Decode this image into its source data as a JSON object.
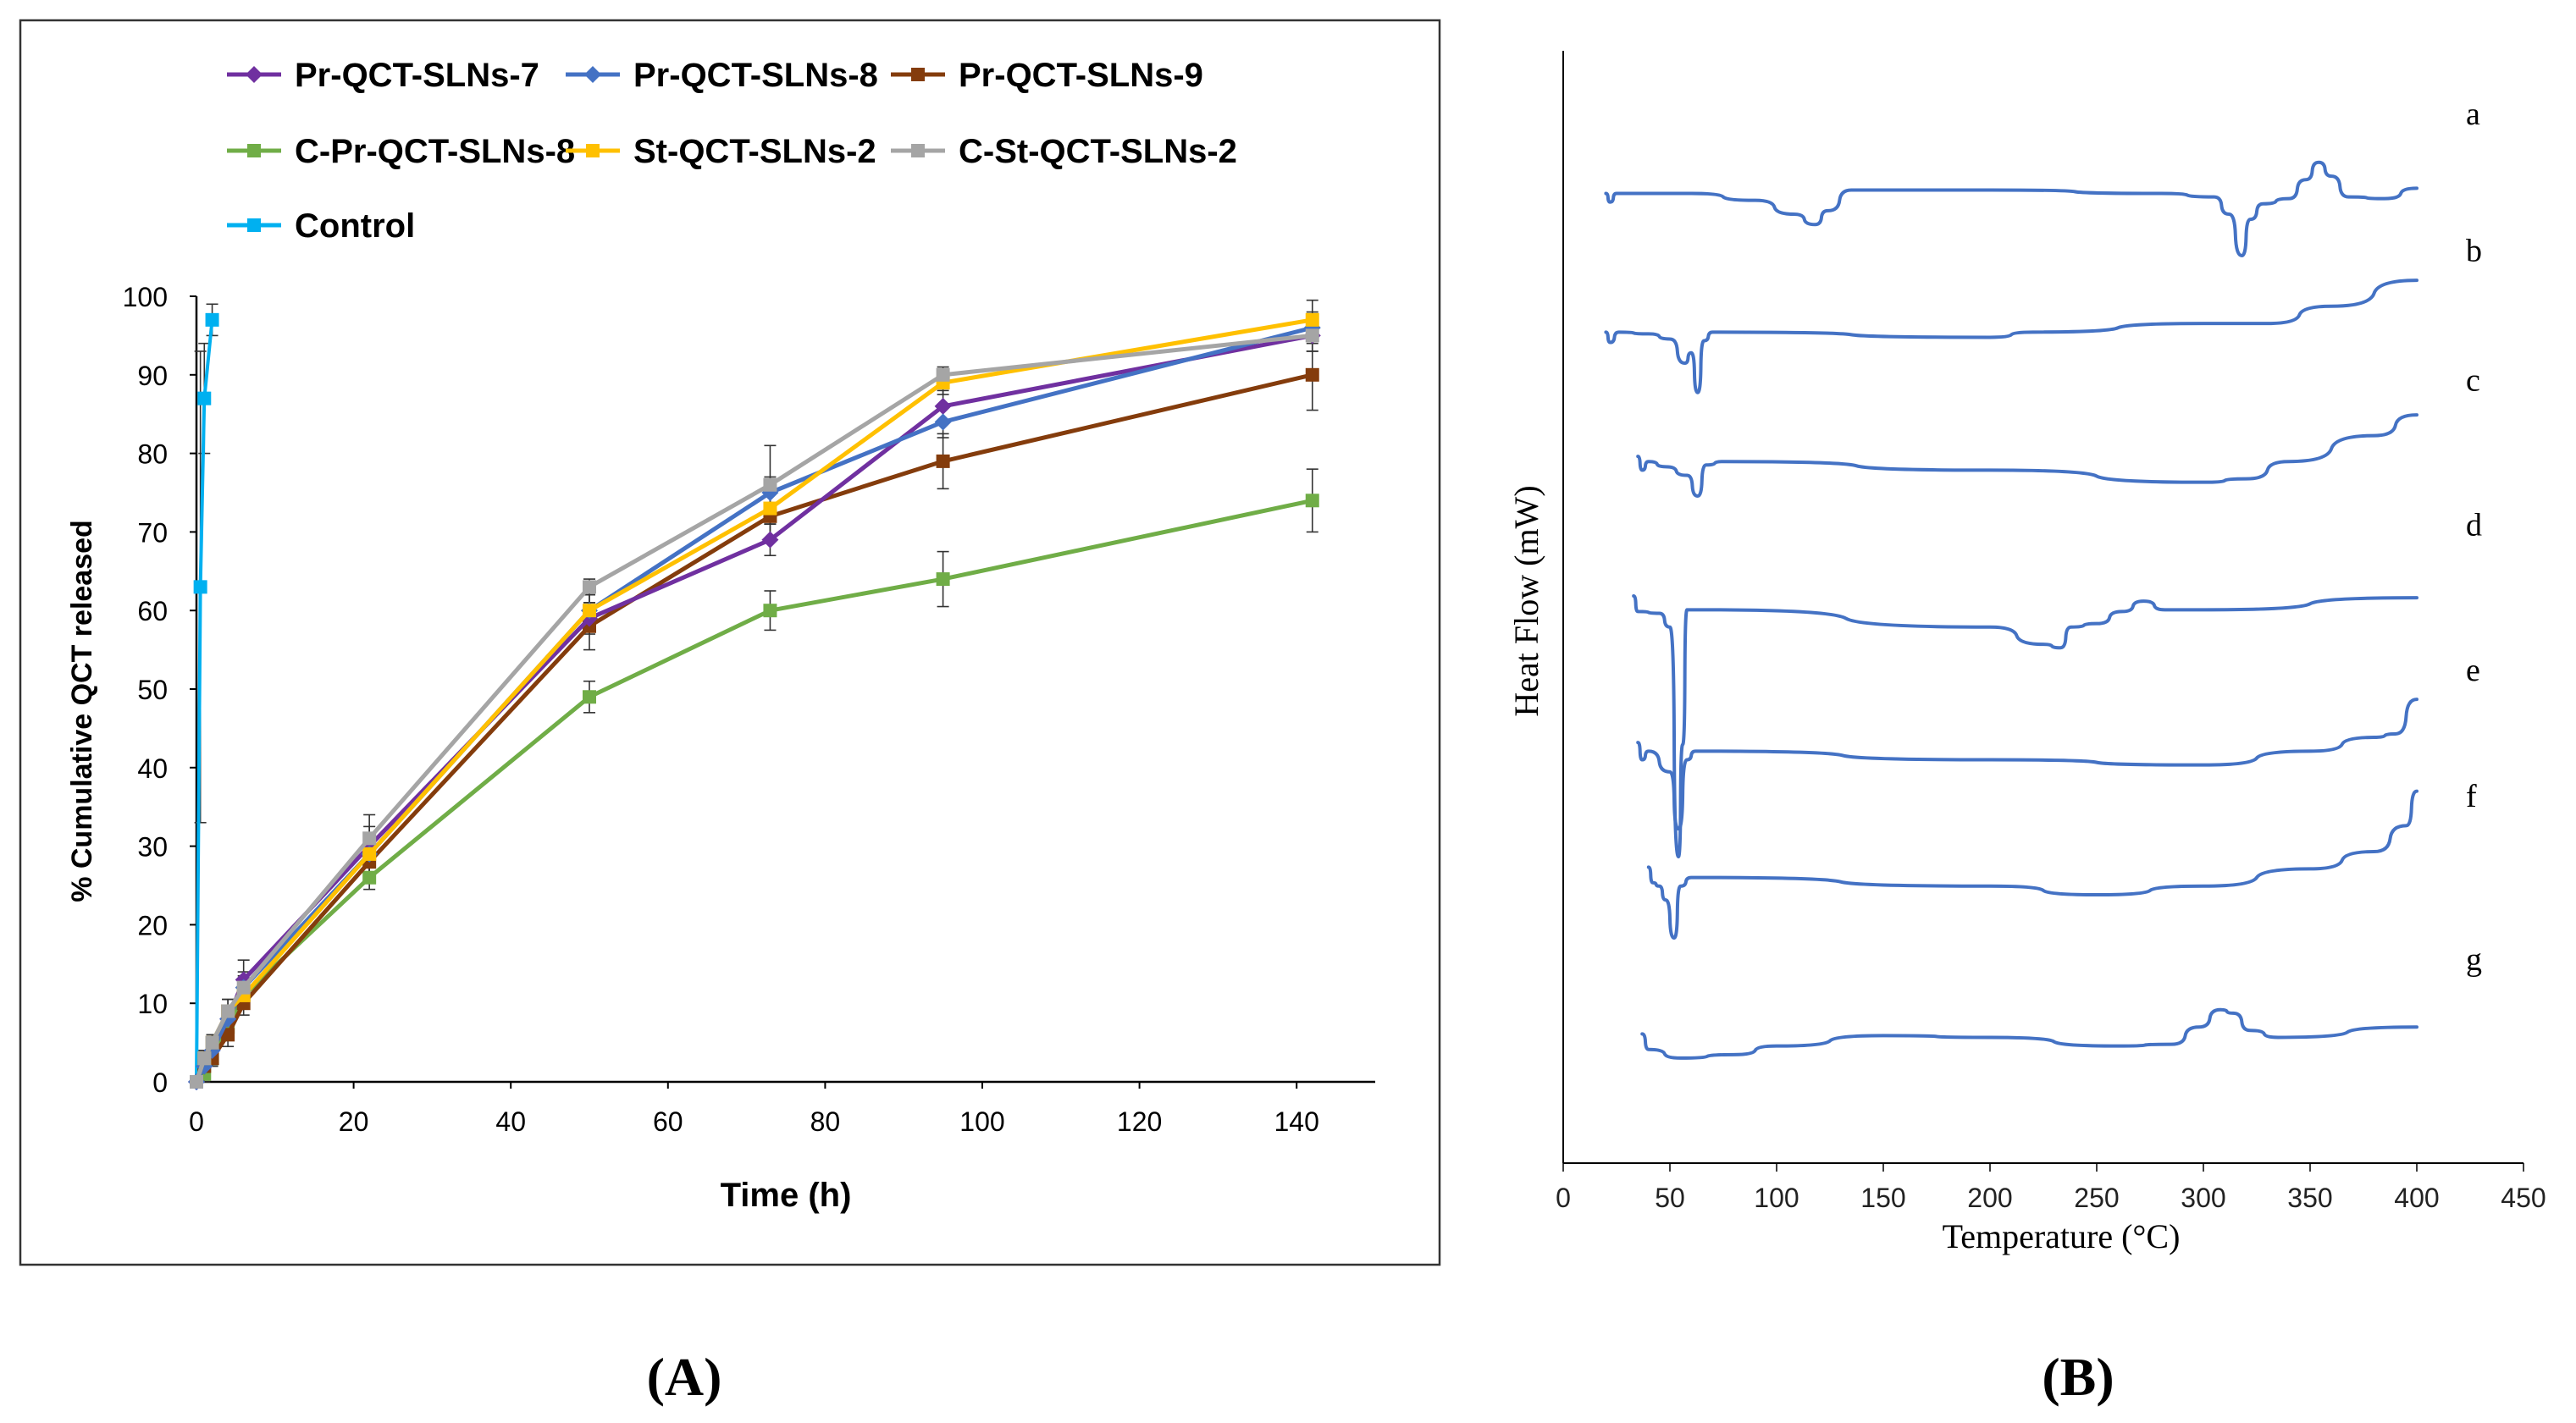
{
  "chart_data": [
    {
      "panel": "A",
      "type": "line",
      "caption": "(A)",
      "xlabel": "Time (h)",
      "ylabel": "% Cumulative QCT released",
      "xlim": [
        0,
        150
      ],
      "ylim": [
        0,
        100
      ],
      "xticks": [
        0,
        20,
        40,
        60,
        80,
        100,
        120,
        140
      ],
      "yticks": [
        0,
        10,
        20,
        30,
        40,
        50,
        60,
        70,
        80,
        90,
        100
      ],
      "grid": false,
      "legend_position": "top",
      "series": [
        {
          "name": "Pr-QCT-SLNs-7",
          "color": "#7030A0",
          "marker": "diamond",
          "points": [
            [
              0,
              0
            ],
            [
              1,
              2
            ],
            [
              2,
              4
            ],
            [
              4,
              8
            ],
            [
              6,
              13
            ],
            [
              22,
              30
            ],
            [
              50,
              59
            ],
            [
              73,
              69
            ],
            [
              95,
              86
            ],
            [
              142,
              95
            ]
          ],
          "err": [
            0,
            1,
            1.5,
            1.5,
            2.5,
            2.5,
            2,
            2,
            2,
            2
          ]
        },
        {
          "name": "Pr-QCT-SLNs-8",
          "color": "#4472C4",
          "marker": "diamond",
          "points": [
            [
              0,
              0
            ],
            [
              1,
              2
            ],
            [
              2,
              4
            ],
            [
              4,
              8
            ],
            [
              6,
              12
            ],
            [
              22,
              29
            ],
            [
              50,
              60
            ],
            [
              73,
              75
            ],
            [
              95,
              84
            ],
            [
              142,
              96
            ]
          ],
          "err": [
            0,
            1,
            1.5,
            1.5,
            2,
            2.5,
            2,
            2,
            2,
            2
          ]
        },
        {
          "name": "Pr-QCT-SLNs-9",
          "color": "#843C0C",
          "marker": "square",
          "points": [
            [
              0,
              0
            ],
            [
              1,
              2
            ],
            [
              2,
              3
            ],
            [
              4,
              6
            ],
            [
              6,
              10
            ],
            [
              22,
              28
            ],
            [
              50,
              58
            ],
            [
              73,
              72
            ],
            [
              95,
              79
            ],
            [
              142,
              90
            ]
          ],
          "err": [
            0,
            1,
            1,
            1.5,
            1.5,
            2.5,
            3,
            3,
            3.5,
            4.5
          ]
        },
        {
          "name": "C-Pr-QCT-SLNs-8",
          "color": "#70AD47",
          "marker": "square",
          "points": [
            [
              0,
              0
            ],
            [
              1,
              1
            ],
            [
              2,
              3
            ],
            [
              4,
              7
            ],
            [
              6,
              11
            ],
            [
              22,
              26
            ],
            [
              50,
              49
            ],
            [
              73,
              60
            ],
            [
              95,
              64
            ],
            [
              142,
              74
            ]
          ],
          "err": [
            0,
            1,
            1,
            1.5,
            1.5,
            1.5,
            2,
            2.5,
            3.5,
            4
          ]
        },
        {
          "name": "St-QCT-SLNs-2",
          "color": "#FFC000",
          "marker": "square",
          "points": [
            [
              0,
              0
            ],
            [
              1,
              3
            ],
            [
              2,
              5
            ],
            [
              4,
              9
            ],
            [
              6,
              11
            ],
            [
              22,
              29
            ],
            [
              50,
              60
            ],
            [
              73,
              73
            ],
            [
              95,
              89
            ],
            [
              142,
              97
            ]
          ],
          "err": [
            0,
            1,
            1,
            1.5,
            1.5,
            2.5,
            2,
            2,
            1.5,
            2.5
          ]
        },
        {
          "name": "C-St-QCT-SLNs-2",
          "color": "#A5A5A5",
          "marker": "square",
          "points": [
            [
              0,
              0
            ],
            [
              1,
              3
            ],
            [
              2,
              5
            ],
            [
              4,
              9
            ],
            [
              6,
              12
            ],
            [
              22,
              31
            ],
            [
              50,
              63
            ],
            [
              73,
              76
            ],
            [
              95,
              90
            ],
            [
              142,
              95
            ]
          ],
          "err": [
            0,
            1,
            1,
            1.5,
            1.5,
            3,
            1,
            5,
            1,
            2
          ]
        },
        {
          "name": "Control",
          "color": "#00B0F0",
          "marker": "square",
          "points": [
            [
              0,
              0
            ],
            [
              0.5,
              63
            ],
            [
              1,
              87
            ],
            [
              2,
              97
            ]
          ],
          "err": [
            0,
            30,
            7,
            2
          ]
        }
      ]
    },
    {
      "panel": "B",
      "type": "line",
      "caption": "(B)",
      "xlabel": "Temperature (°C)",
      "ylabel": "Heat Flow (mW)",
      "xlim": [
        0,
        450
      ],
      "xticks": [
        0,
        50,
        100,
        150,
        200,
        250,
        300,
        350,
        400,
        450
      ],
      "grid": false,
      "line_color": "#4472C4",
      "offset_scale": 6,
      "series": [
        {
          "name": "a",
          "baseline": 8.6,
          "points": [
            [
              20,
              0
            ],
            [
              22,
              -0.5
            ],
            [
              25,
              0
            ],
            [
              60,
              0
            ],
            [
              90,
              -0.4
            ],
            [
              108,
              -1.2
            ],
            [
              118,
              -1.8
            ],
            [
              124,
              -1
            ],
            [
              135,
              0.2
            ],
            [
              200,
              0.2
            ],
            [
              280,
              0
            ],
            [
              305,
              -0.2
            ],
            [
              312,
              -1.2
            ],
            [
              318,
              -3.6
            ],
            [
              322,
              -1.5
            ],
            [
              328,
              -0.6
            ],
            [
              340,
              -0.3
            ],
            [
              348,
              0.8
            ],
            [
              354,
              1.8
            ],
            [
              360,
              1
            ],
            [
              368,
              -0.2
            ],
            [
              385,
              -0.3
            ],
            [
              400,
              0.3
            ]
          ]
        },
        {
          "name": "b",
          "baseline": 17.6,
          "points": [
            [
              20,
              0
            ],
            [
              22,
              -0.6
            ],
            [
              26,
              0
            ],
            [
              40,
              -0.1
            ],
            [
              50,
              -0.4
            ],
            [
              57,
              -1.8
            ],
            [
              60,
              -1.2
            ],
            [
              63,
              -3.5
            ],
            [
              66,
              -0.5
            ],
            [
              70,
              0
            ],
            [
              200,
              -0.3
            ],
            [
              220,
              0
            ],
            [
              300,
              0.5
            ],
            [
              330,
              0.5
            ],
            [
              360,
              1.5
            ],
            [
              400,
              3
            ]
          ]
        },
        {
          "name": "c",
          "baseline": 26.0,
          "points": [
            [
              35,
              0.3
            ],
            [
              37,
              -0.5
            ],
            [
              40,
              0
            ],
            [
              48,
              -0.3
            ],
            [
              58,
              -0.8
            ],
            [
              63,
              -2
            ],
            [
              67,
              -0.2
            ],
            [
              75,
              0
            ],
            [
              200,
              -0.5
            ],
            [
              300,
              -1.2
            ],
            [
              320,
              -1
            ],
            [
              340,
              0
            ],
            [
              380,
              1.5
            ],
            [
              400,
              2.7
            ]
          ]
        },
        {
          "name": "d",
          "baseline": 35.4,
          "points": [
            [
              33,
              0.6
            ],
            [
              35,
              -0.3
            ],
            [
              45,
              -0.4
            ],
            [
              50,
              -1.2
            ],
            [
              54,
              -14.5
            ],
            [
              56,
              -8
            ],
            [
              58,
              -0.2
            ],
            [
              65,
              -0.2
            ],
            [
              200,
              -1.2
            ],
            [
              225,
              -2.2
            ],
            [
              233,
              -2.4
            ],
            [
              238,
              -1.2
            ],
            [
              250,
              -1
            ],
            [
              262,
              -0.3
            ],
            [
              272,
              0.3
            ],
            [
              282,
              -0.2
            ],
            [
              300,
              -0.2
            ],
            [
              400,
              0.5
            ]
          ]
        },
        {
          "name": "e",
          "baseline": 44.8,
          "points": [
            [
              35,
              0.5
            ],
            [
              37,
              -0.5
            ],
            [
              40,
              0
            ],
            [
              50,
              -1.2
            ],
            [
              54,
              -4.5
            ],
            [
              58,
              -0.5
            ],
            [
              62,
              0
            ],
            [
              200,
              -0.5
            ],
            [
              300,
              -0.8
            ],
            [
              350,
              0
            ],
            [
              380,
              0.8
            ],
            [
              390,
              1
            ],
            [
              400,
              3
            ]
          ]
        },
        {
          "name": "f",
          "baseline": 53.0,
          "points": [
            [
              40,
              0.6
            ],
            [
              42,
              -0.3
            ],
            [
              45,
              -0.5
            ],
            [
              48,
              -1.3
            ],
            [
              52,
              -3.5
            ],
            [
              55,
              -0.5
            ],
            [
              60,
              0
            ],
            [
              200,
              -0.5
            ],
            [
              250,
              -1
            ],
            [
              300,
              -0.5
            ],
            [
              350,
              0.5
            ],
            [
              380,
              1.5
            ],
            [
              395,
              3
            ],
            [
              400,
              5
            ]
          ]
        },
        {
          "name": "g",
          "baseline": 63.6,
          "points": [
            [
              37,
              0.4
            ],
            [
              40,
              -0.5
            ],
            [
              55,
              -1
            ],
            [
              80,
              -0.8
            ],
            [
              100,
              -0.3
            ],
            [
              150,
              0.3
            ],
            [
              200,
              0.2
            ],
            [
              260,
              -0.3
            ],
            [
              285,
              -0.2
            ],
            [
              298,
              0.8
            ],
            [
              308,
              1.8
            ],
            [
              314,
              1.6
            ],
            [
              322,
              0.6
            ],
            [
              335,
              0.2
            ],
            [
              400,
              0.8
            ]
          ]
        }
      ]
    }
  ]
}
